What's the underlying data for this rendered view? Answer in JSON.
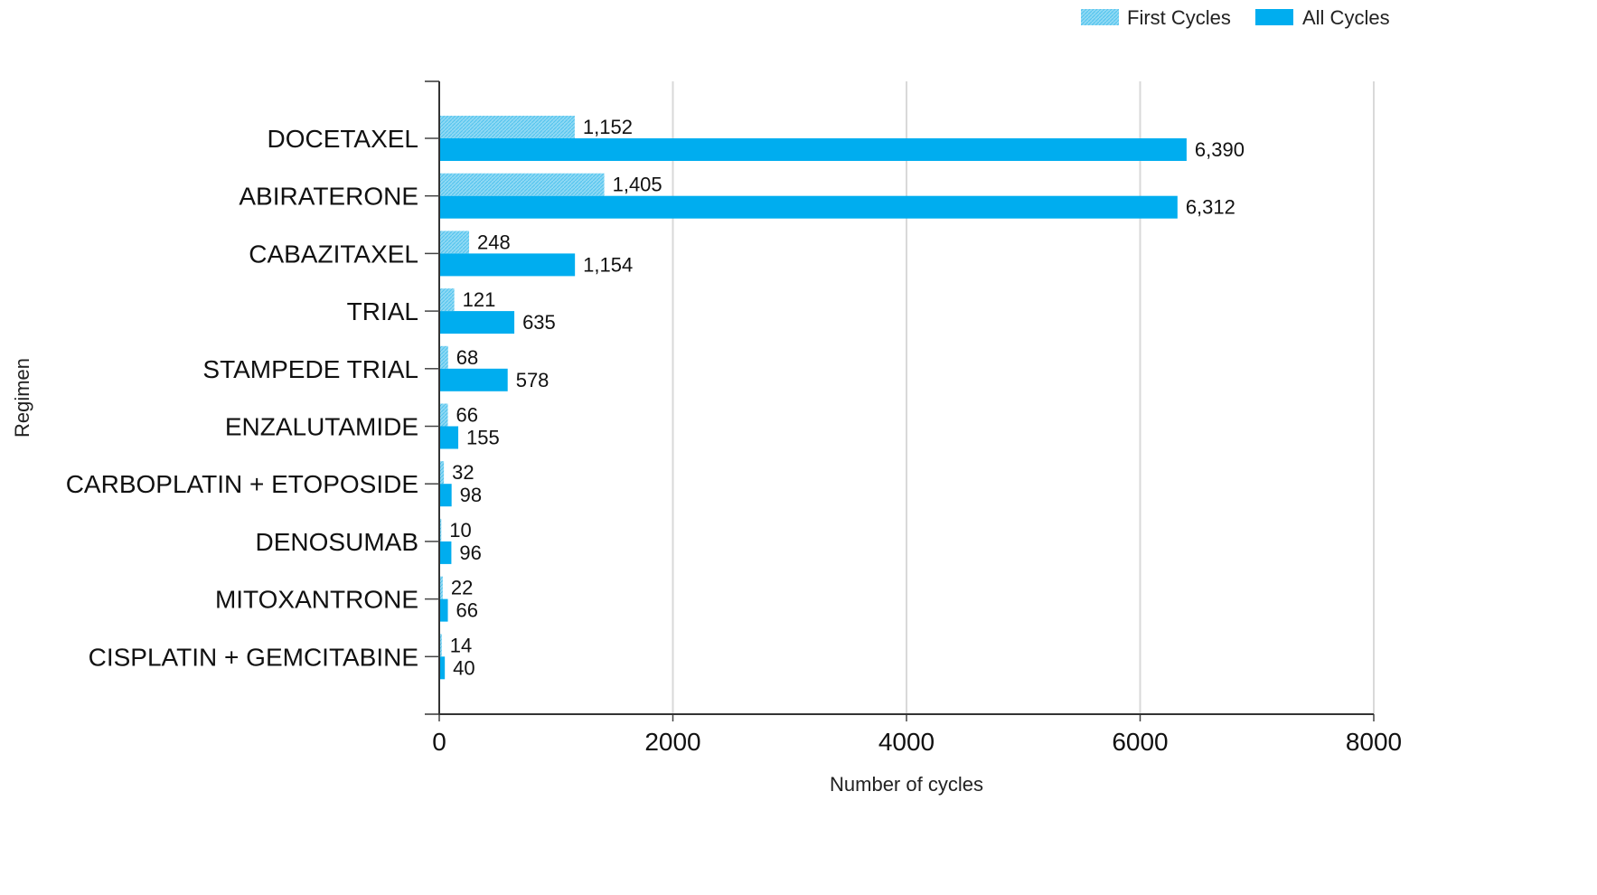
{
  "chart_data": {
    "type": "bar",
    "orientation": "horizontal",
    "categories": [
      "DOCETAXEL",
      "ABIRATERONE",
      "CABAZITAXEL",
      "TRIAL",
      "STAMPEDE TRIAL",
      "ENZALUTAMIDE",
      "CARBOPLATIN + ETOPOSIDE",
      "DENOSUMAB",
      "MITOXANTRONE",
      "CISPLATIN + GEMCITABINE"
    ],
    "series": [
      {
        "name": "First Cycles",
        "color": "#7fd3f2",
        "pattern": "hatched",
        "values": [
          1152,
          1405,
          248,
          121,
          68,
          66,
          32,
          10,
          22,
          14
        ],
        "labels": [
          "1,152",
          "1,405",
          "248",
          "121",
          "68",
          "66",
          "32",
          "10",
          "22",
          "14"
        ]
      },
      {
        "name": "All Cycles",
        "color": "#00adef",
        "pattern": "solid",
        "values": [
          6390,
          6312,
          1154,
          635,
          578,
          155,
          98,
          96,
          66,
          40
        ],
        "labels": [
          "6,390",
          "6,312",
          "1,154",
          "635",
          "578",
          "155",
          "98",
          "96",
          "66",
          "40"
        ]
      }
    ],
    "xlabel": "Number of cycles",
    "ylabel": "Regimen",
    "xlim": [
      0,
      8000
    ],
    "xticks": [
      "0",
      "2000",
      "4000",
      "6000",
      "8000"
    ],
    "grid": "vertical",
    "legend": "top-right"
  }
}
